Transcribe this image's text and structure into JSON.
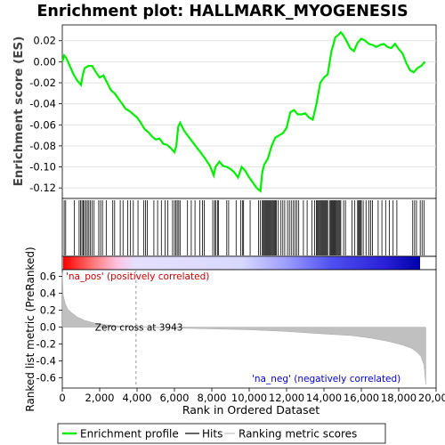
{
  "chart_data": [
    {
      "panel": "enrichment",
      "type": "line",
      "title": "Enrichment plot: HALLMARK_MYOGENESIS",
      "ylabel": "Enrichment score (ES)",
      "xlim": [
        0,
        19500
      ],
      "ylim": [
        -0.13,
        0.035
      ],
      "yticks": [
        0.02,
        0.0,
        -0.02,
        -0.04,
        -0.06,
        -0.08,
        -0.1,
        -0.12
      ],
      "ytick_labels": [
        "0.02",
        "0.00",
        "-0.02",
        "-0.04",
        "-0.06",
        "-0.08",
        "-0.10",
        "-0.12"
      ],
      "color": "#00ee00",
      "series": [
        {
          "x": [
            0,
            100,
            200,
            400,
            600,
            800,
            1000,
            1100,
            1200,
            1400,
            1600,
            1800,
            2000,
            2200,
            2400,
            2600,
            2800,
            3000,
            3200,
            3400,
            3600,
            3800,
            4000,
            4200,
            4400,
            4600,
            4800,
            5000,
            5200,
            5400,
            5600,
            5800,
            6000,
            6100,
            6200,
            6300,
            6500,
            6700,
            7000,
            7300,
            7600,
            7900,
            8100,
            8200,
            8400,
            8600,
            8800,
            9000,
            9200,
            9400,
            9600,
            9800,
            10000,
            10200,
            10400,
            10600,
            10700,
            10800,
            11000,
            11200,
            11400,
            11600,
            11800,
            12000,
            12200,
            12400,
            12600,
            12800,
            13000,
            13200,
            13400,
            13600,
            13800,
            14000,
            14200,
            14400,
            14500,
            14600,
            14800,
            14900,
            15000,
            15200,
            15400,
            15600,
            15800,
            16000,
            16200,
            16400,
            16600,
            16800,
            17000,
            17200,
            17400,
            17600,
            17800,
            18000,
            18200,
            18400,
            18600,
            18800,
            19000,
            19200,
            19400
          ],
          "y": [
            0.0,
            0.006,
            0.004,
            -0.004,
            -0.012,
            -0.018,
            -0.022,
            -0.012,
            -0.006,
            -0.004,
            -0.004,
            -0.01,
            -0.015,
            -0.013,
            -0.02,
            -0.027,
            -0.03,
            -0.035,
            -0.04,
            -0.045,
            -0.047,
            -0.05,
            -0.053,
            -0.058,
            -0.064,
            -0.067,
            -0.071,
            -0.074,
            -0.073,
            -0.078,
            -0.079,
            -0.082,
            -0.086,
            -0.08,
            -0.062,
            -0.058,
            -0.065,
            -0.07,
            -0.077,
            -0.084,
            -0.091,
            -0.099,
            -0.108,
            -0.1,
            -0.095,
            -0.099,
            -0.1,
            -0.102,
            -0.105,
            -0.11,
            -0.1,
            -0.104,
            -0.11,
            -0.115,
            -0.12,
            -0.123,
            -0.105,
            -0.098,
            -0.092,
            -0.08,
            -0.072,
            -0.07,
            -0.068,
            -0.063,
            -0.048,
            -0.046,
            -0.05,
            -0.05,
            -0.049,
            -0.053,
            -0.055,
            -0.04,
            -0.02,
            -0.015,
            -0.012,
            0.01,
            0.016,
            0.023,
            0.026,
            0.028,
            0.026,
            0.02,
            0.013,
            0.01,
            0.018,
            0.022,
            0.02,
            0.017,
            0.016,
            0.014,
            0.016,
            0.017,
            0.014,
            0.013,
            0.017,
            0.012,
            0.008,
            -0.001,
            -0.008,
            -0.01,
            -0.006,
            -0.004,
            0.0
          ]
        }
      ]
    },
    {
      "panel": "hits",
      "type": "scatter",
      "description_of_marks": "vertical hit ticks at gene ranks",
      "hits": [
        100,
        180,
        650,
        900,
        980,
        1050,
        1120,
        1180,
        1260,
        1340,
        1420,
        1500,
        1600,
        1700,
        1950,
        2050,
        2150,
        2350,
        2700,
        2800,
        3100,
        3250,
        3500,
        3650,
        3800,
        4050,
        4350,
        4450,
        4550,
        4900,
        5100,
        5300,
        5500,
        5650,
        5900,
        6000,
        6080,
        6150,
        6230,
        6300,
        6700,
        6900,
        7100,
        7350,
        7500,
        7600,
        8050,
        8150,
        8200,
        8300,
        8350,
        8800,
        8900,
        9300,
        9550,
        9650,
        9700,
        10050,
        10500,
        10600,
        10700,
        10750,
        10800,
        10850,
        10900,
        10950,
        11000,
        11050,
        11100,
        11150,
        11200,
        11250,
        11300,
        11350,
        11400,
        11450,
        11550,
        11700,
        11800,
        11900,
        12050,
        12150,
        12250,
        12350,
        12450,
        12550,
        12650,
        12900,
        13100,
        13350,
        13500,
        13600,
        13650,
        13700,
        13750,
        13800,
        13850,
        13900,
        13950,
        14000,
        14050,
        14100,
        14150,
        14200,
        14300,
        14350,
        14400,
        14450,
        14500,
        14550,
        14600,
        14650,
        14700,
        14750,
        14800,
        14850,
        14900,
        15050,
        15150,
        15500,
        15650,
        15800,
        15850,
        15900,
        15950,
        16000,
        16100,
        16250,
        16400,
        16500,
        16600,
        16900,
        17100,
        17300,
        17500,
        17700,
        17900,
        18750,
        18850,
        18950,
        19150,
        19250,
        19350
      ]
    },
    {
      "panel": "ranked-metric",
      "type": "area",
      "ylabel": "Ranked list metric (PreRanked)",
      "xlabel": "Rank in Ordered Dataset",
      "xlim": [
        0,
        20000
      ],
      "ylim": [
        -0.72,
        0.68
      ],
      "xticks": [
        0,
        2000,
        4000,
        6000,
        8000,
        10000,
        12000,
        14000,
        16000,
        18000,
        20000
      ],
      "xtick_labels": [
        "0",
        "2,000",
        "4,000",
        "6,000",
        "8,000",
        "10,000",
        "12,000",
        "14,000",
        "16,000",
        "18,000",
        "20,000"
      ],
      "yticks": [
        0.6,
        0.4,
        0.2,
        0.0,
        -0.2,
        -0.4,
        -0.6
      ],
      "ytick_labels": [
        "0.6",
        "0.4",
        "0.2",
        "0.0",
        "-0.2",
        "-0.4",
        "-0.6"
      ],
      "zero_cross": 3943,
      "zero_cross_label": "Zero cross at 3943",
      "pos_label": "'na_pos' (positively correlated)",
      "neg_label": "'na_neg' (negatively correlated)",
      "pos_color": "#cc0000",
      "neg_color": "#0000cc",
      "fill_color": "#c0c0c0",
      "x": [
        0,
        50,
        150,
        300,
        500,
        800,
        1200,
        1700,
        2300,
        3000,
        3943,
        6000,
        8000,
        10000,
        12000,
        14000,
        15500,
        16500,
        17500,
        18200,
        18700,
        19000,
        19200,
        19350,
        19450
      ],
      "y": [
        0.65,
        0.38,
        0.28,
        0.21,
        0.17,
        0.12,
        0.08,
        0.05,
        0.03,
        0.015,
        0.0,
        -0.01,
        -0.02,
        -0.03,
        -0.05,
        -0.08,
        -0.1,
        -0.13,
        -0.17,
        -0.21,
        -0.25,
        -0.3,
        -0.35,
        -0.45,
        -0.68
      ]
    }
  ],
  "legend": {
    "items": [
      {
        "label": "Enrichment profile",
        "color": "#00ee00"
      },
      {
        "label": "Hits",
        "color": "#000000"
      },
      {
        "label": "Ranking metric scores",
        "color": "#c0c0c0"
      }
    ]
  }
}
